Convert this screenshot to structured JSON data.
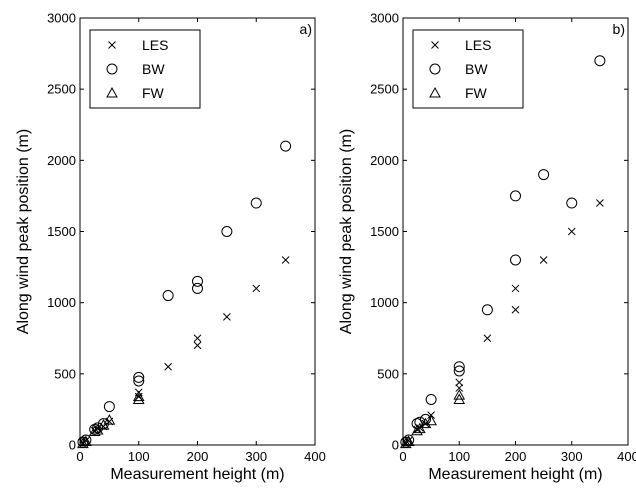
{
  "chart_data": [
    {
      "type": "scatter",
      "panel_label": "a)",
      "xlabel": "Measurement height (m)",
      "ylabel": "Along wind peak position (m)",
      "xlim": [
        0,
        400
      ],
      "ylim": [
        0,
        3000
      ],
      "xticks": [
        "0",
        "100",
        "200",
        "300",
        "400"
      ],
      "yticks": [
        "0",
        "500",
        "1000",
        "1500",
        "2000",
        "2500",
        "3000"
      ],
      "legend_position": "top-left",
      "series": [
        {
          "name": "LES",
          "marker": "x",
          "points": [
            [
              5,
              15
            ],
            [
              10,
              30
            ],
            [
              25,
              100
            ],
            [
              30,
              115
            ],
            [
              40,
              130
            ],
            [
              50,
              165
            ],
            [
              100,
              340
            ],
            [
              100,
              370
            ],
            [
              150,
              550
            ],
            [
              200,
              700
            ],
            [
              200,
              750
            ],
            [
              250,
              900
            ],
            [
              300,
              1100
            ],
            [
              350,
              1300
            ]
          ]
        },
        {
          "name": "BW",
          "marker": "circle",
          "points": [
            [
              5,
              20
            ],
            [
              10,
              35
            ],
            [
              25,
              110
            ],
            [
              30,
              120
            ],
            [
              40,
              150
            ],
            [
              50,
              270
            ],
            [
              100,
              450
            ],
            [
              100,
              475
            ],
            [
              150,
              1050
            ],
            [
              200,
              1100
            ],
            [
              200,
              1150
            ],
            [
              250,
              1500
            ],
            [
              300,
              1700
            ],
            [
              350,
              2100
            ]
          ]
        },
        {
          "name": "FW",
          "marker": "triangle",
          "points": [
            [
              5,
              10
            ],
            [
              10,
              25
            ],
            [
              25,
              95
            ],
            [
              30,
              105
            ],
            [
              40,
              140
            ],
            [
              50,
              175
            ],
            [
              100,
              320
            ],
            [
              100,
              340
            ]
          ]
        }
      ]
    },
    {
      "type": "scatter",
      "panel_label": "b)",
      "xlabel": "Measurement height (m)",
      "ylabel": "Along wind peak position (m)",
      "xlim": [
        0,
        400
      ],
      "ylim": [
        0,
        3000
      ],
      "xticks": [
        "0",
        "100",
        "200",
        "300",
        "400"
      ],
      "yticks": [
        "0",
        "500",
        "1000",
        "1500",
        "2000",
        "2500",
        "3000"
      ],
      "legend_position": "top-left",
      "series": [
        {
          "name": "LES",
          "marker": "x",
          "points": [
            [
              5,
              15
            ],
            [
              10,
              30
            ],
            [
              25,
              110
            ],
            [
              30,
              120
            ],
            [
              40,
              150
            ],
            [
              50,
              210
            ],
            [
              100,
              400
            ],
            [
              100,
              440
            ],
            [
              150,
              750
            ],
            [
              200,
              950
            ],
            [
              200,
              1100
            ],
            [
              250,
              1300
            ],
            [
              300,
              1500
            ],
            [
              350,
              1700
            ]
          ]
        },
        {
          "name": "BW",
          "marker": "circle",
          "points": [
            [
              5,
              20
            ],
            [
              10,
              35
            ],
            [
              25,
              150
            ],
            [
              30,
              160
            ],
            [
              40,
              180
            ],
            [
              50,
              320
            ],
            [
              100,
              520
            ],
            [
              100,
              550
            ],
            [
              150,
              950
            ],
            [
              200,
              1300
            ],
            [
              200,
              1750
            ],
            [
              250,
              1900
            ],
            [
              300,
              1700
            ],
            [
              350,
              2700
            ]
          ]
        },
        {
          "name": "FW",
          "marker": "triangle",
          "points": [
            [
              5,
              10
            ],
            [
              10,
              25
            ],
            [
              25,
              100
            ],
            [
              30,
              115
            ],
            [
              40,
              150
            ],
            [
              50,
              170
            ],
            [
              100,
              320
            ],
            [
              100,
              350
            ]
          ]
        }
      ]
    }
  ]
}
